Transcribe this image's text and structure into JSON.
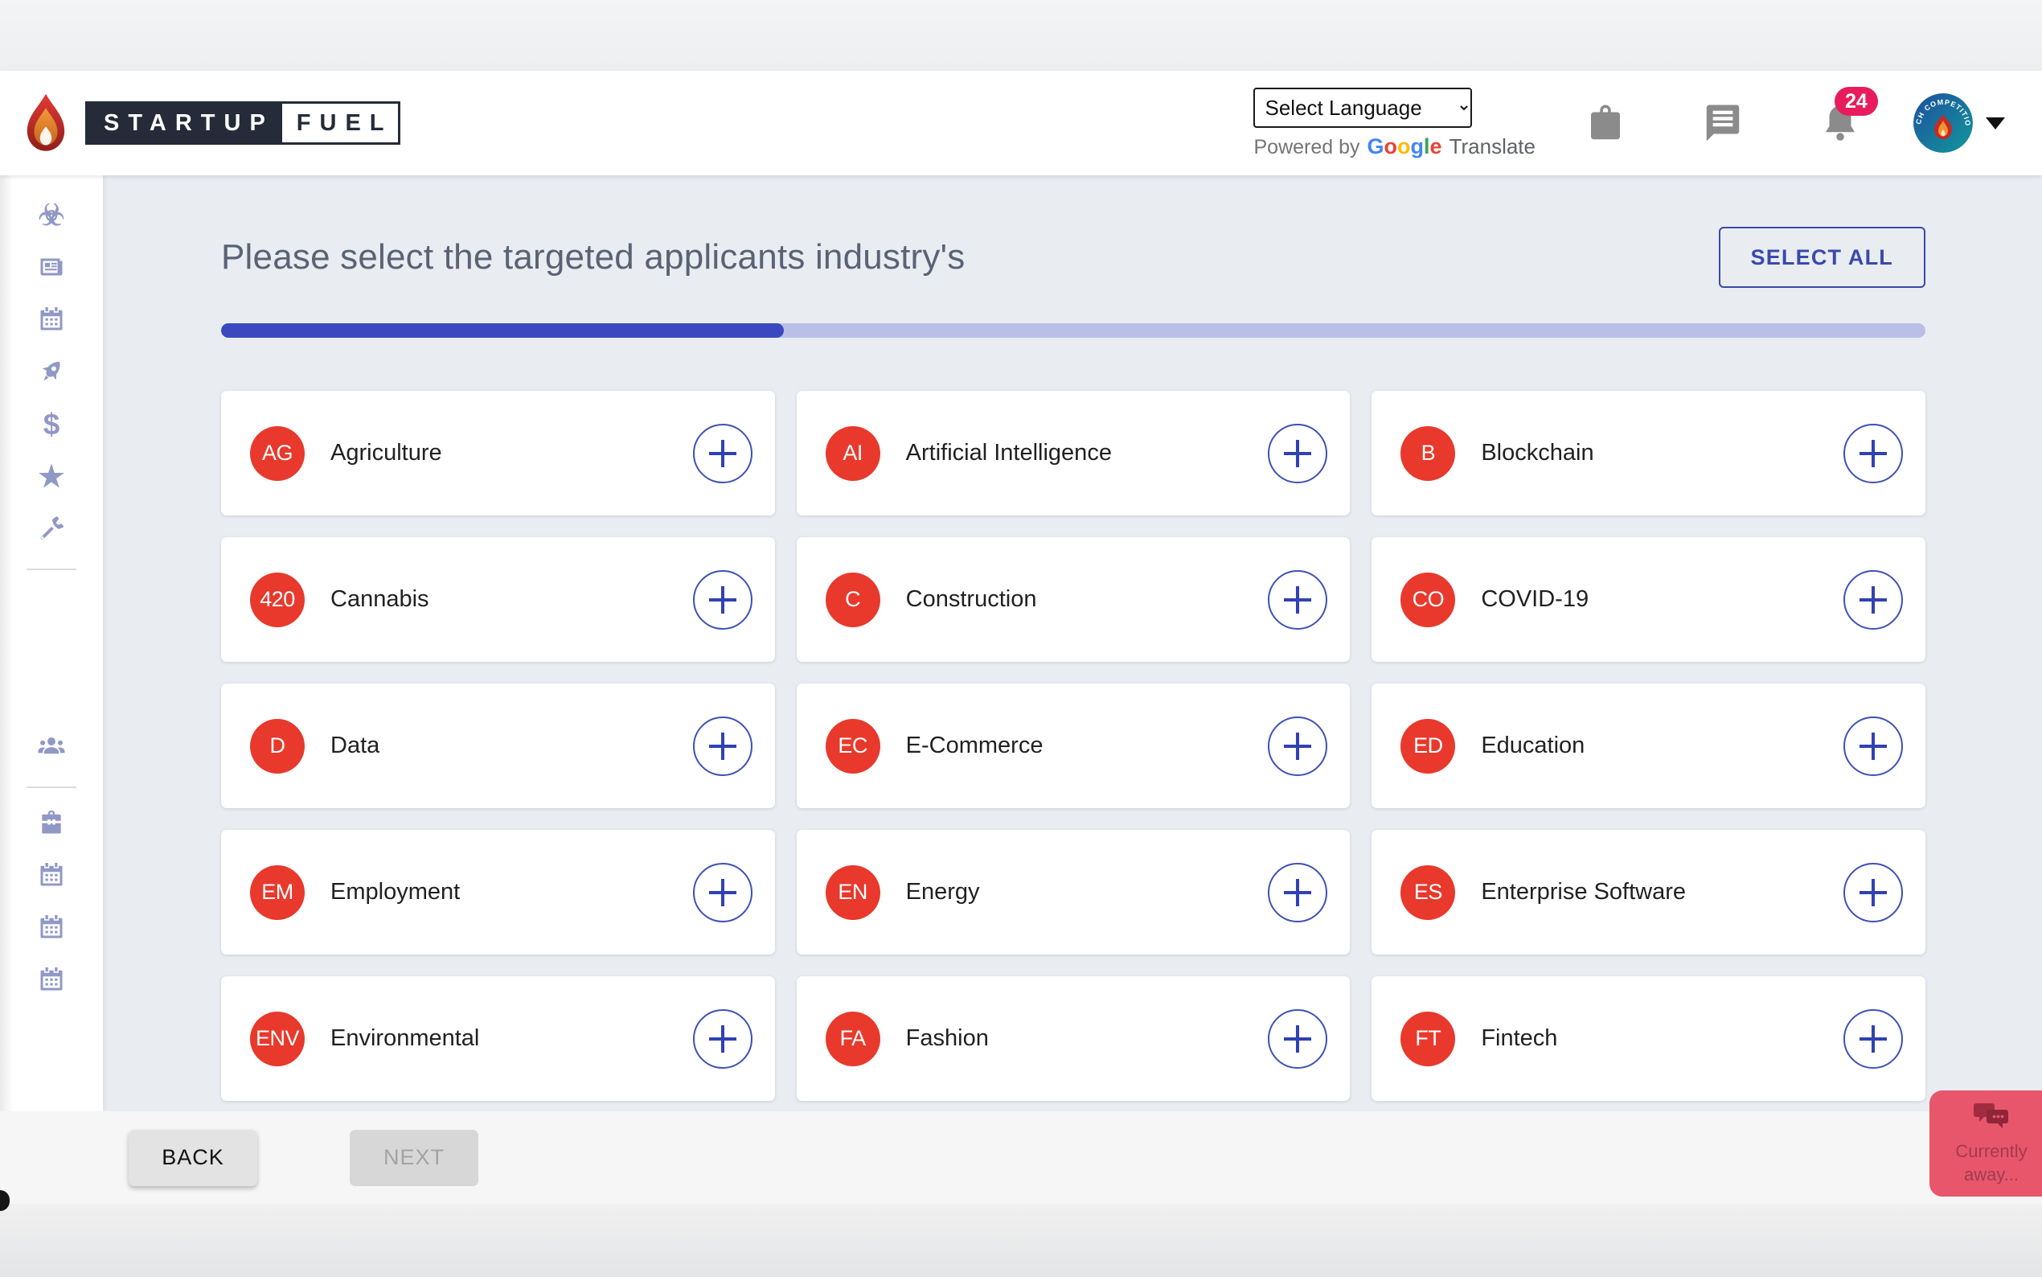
{
  "header": {
    "brand": {
      "word1": "STARTUP",
      "word2": "FUEL"
    },
    "language_select": {
      "selected": "Select Language"
    },
    "translate": {
      "powered_by": "Powered by",
      "brand_letters": [
        "G",
        "o",
        "o",
        "g",
        "l",
        "e"
      ],
      "product": "Translate"
    },
    "notification_count": "24",
    "avatar_arc_text": "PITCH COMPETITIONS"
  },
  "sidebar": {
    "items": [
      "biohazard",
      "newspaper",
      "calendar",
      "rocket",
      "dollar",
      "star",
      "tools",
      "users",
      "toolbox",
      "calendar",
      "calendar",
      "calendar"
    ]
  },
  "glyphs": {
    "biohazard": "☣",
    "dollar": "$",
    "star": "★"
  },
  "main": {
    "title": "Please select the targeted applicants industry's",
    "select_all_label": "SELECT ALL",
    "progress": {
      "percent": 33
    },
    "industries": [
      {
        "initials": "AG",
        "name": "Agriculture"
      },
      {
        "initials": "AI",
        "name": "Artificial Intelligence"
      },
      {
        "initials": "B",
        "name": "Blockchain"
      },
      {
        "initials": "420",
        "name": "Cannabis"
      },
      {
        "initials": "C",
        "name": "Construction"
      },
      {
        "initials": "CO",
        "name": "COVID-19"
      },
      {
        "initials": "D",
        "name": "Data"
      },
      {
        "initials": "EC",
        "name": "E-Commerce"
      },
      {
        "initials": "ED",
        "name": "Education"
      },
      {
        "initials": "EM",
        "name": "Employment"
      },
      {
        "initials": "EN",
        "name": "Energy"
      },
      {
        "initials": "ES",
        "name": "Enterprise Software"
      },
      {
        "initials": "ENV",
        "name": "Environmental"
      },
      {
        "initials": "FA",
        "name": "Fashion"
      },
      {
        "initials": "FT",
        "name": "Fintech"
      }
    ]
  },
  "footer": {
    "back_label": "BACK",
    "next_label": "NEXT"
  },
  "chat_widget": {
    "status_line1": "Currently",
    "status_line2": "away..."
  },
  "colors": {
    "accent_blue": "#3949ab",
    "progress_fill": "#3a49c0",
    "progress_track": "#b9bfe7",
    "industry_avatar_red": "#e8392c",
    "badge_pink": "#e81c5c",
    "widget_rose": "#e8566c",
    "sidebar_icon": "#9098c6",
    "content_bg": "#e9edf2"
  }
}
